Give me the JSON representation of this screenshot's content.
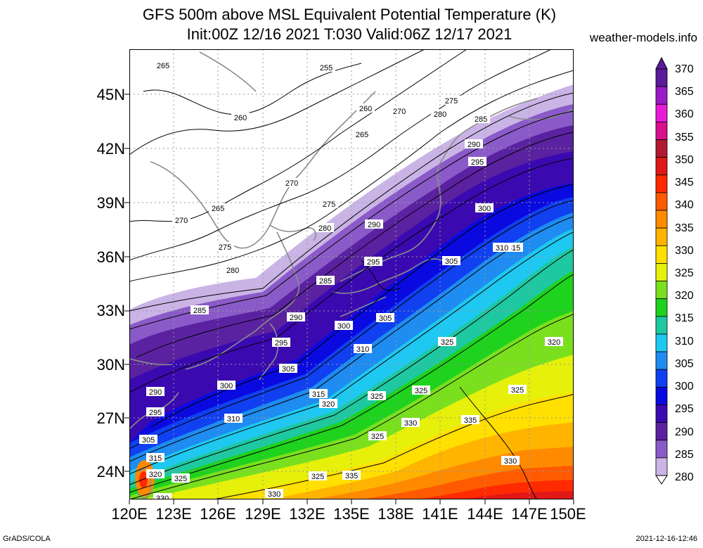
{
  "header": {
    "title_line1": "GFS 500m above MSL Equivalent Potential Temperature (K)",
    "title_line2": "Init:00Z 12/16 2021 T:030 Valid:06Z 12/17 2021",
    "site": "weather-models.info"
  },
  "axes": {
    "lat_labels": [
      "45N",
      "42N",
      "39N",
      "36N",
      "33N",
      "30N",
      "27N",
      "24N"
    ],
    "lon_labels": [
      "120E",
      "123E",
      "126E",
      "129E",
      "132E",
      "135E",
      "138E",
      "141E",
      "144E",
      "147E",
      "150E"
    ]
  },
  "colorbar": {
    "labels": [
      "370",
      "365",
      "360",
      "355",
      "350",
      "345",
      "340",
      "335",
      "330",
      "325",
      "320",
      "315",
      "310",
      "305",
      "300",
      "295",
      "290",
      "285",
      "280"
    ],
    "colors": [
      "#5a1a9a",
      "#9a1ac8",
      "#e81ad8",
      "#d8108c",
      "#b01a32",
      "#e01818",
      "#ff2a00",
      "#ff5a00",
      "#ff8a00",
      "#ffb400",
      "#ffe000",
      "#e6f00a",
      "#7ae01e",
      "#1ed21e",
      "#1ec8a0",
      "#1ec8f0",
      "#1e8cf0",
      "#1040f0",
      "#0a0ae0",
      "#3a0ab0",
      "#5a22a0",
      "#8a5ac8",
      "#cab4e6"
    ]
  },
  "contour_labels": [
    {
      "text": "265"
    },
    {
      "text": "255"
    },
    {
      "text": "260"
    },
    {
      "text": "270"
    },
    {
      "text": "275"
    },
    {
      "text": "280"
    },
    {
      "text": "260"
    },
    {
      "text": "265"
    },
    {
      "text": "285"
    },
    {
      "text": "290"
    },
    {
      "text": "295"
    },
    {
      "text": "270"
    },
    {
      "text": "275"
    },
    {
      "text": "265"
    },
    {
      "text": "270"
    },
    {
      "text": "275"
    },
    {
      "text": "280"
    },
    {
      "text": "290"
    },
    {
      "text": "300"
    },
    {
      "text": "280"
    },
    {
      "text": "295"
    },
    {
      "text": "285"
    },
    {
      "text": "305"
    },
    {
      "text": "315"
    },
    {
      "text": "310"
    },
    {
      "text": "285"
    },
    {
      "text": "290"
    },
    {
      "text": "300"
    },
    {
      "text": "305"
    },
    {
      "text": "295"
    },
    {
      "text": "310"
    },
    {
      "text": "325"
    },
    {
      "text": "320"
    },
    {
      "text": "305"
    },
    {
      "text": "290"
    },
    {
      "text": "300"
    },
    {
      "text": "315"
    },
    {
      "text": "320"
    },
    {
      "text": "325"
    },
    {
      "text": "325"
    },
    {
      "text": "325"
    },
    {
      "text": "295"
    },
    {
      "text": "310"
    },
    {
      "text": "330"
    },
    {
      "text": "335"
    },
    {
      "text": "305"
    },
    {
      "text": "325"
    },
    {
      "text": "315"
    },
    {
      "text": "320"
    },
    {
      "text": "325"
    },
    {
      "text": "330"
    },
    {
      "text": "325"
    },
    {
      "text": "335"
    },
    {
      "text": "330"
    },
    {
      "text": "330"
    }
  ],
  "footer": {
    "left": "GrADS/COLA",
    "right": "2021-12-16-12:46"
  }
}
